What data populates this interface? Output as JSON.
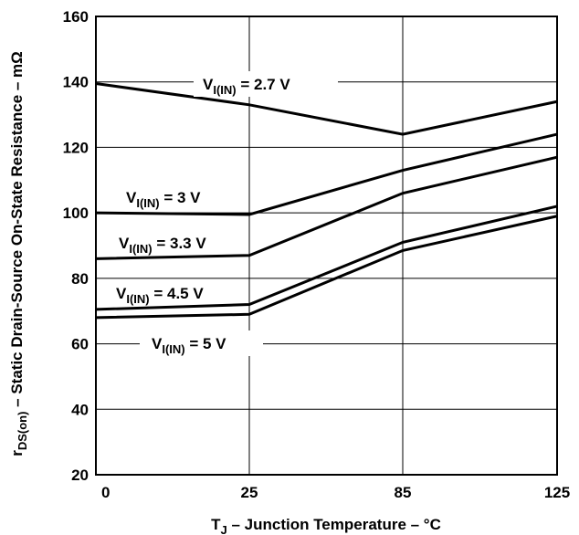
{
  "chart_data": {
    "type": "line",
    "xlabel": {
      "main": "T",
      "sub": "J",
      "rest": " – Junction Temperature – °C"
    },
    "ylabel": {
      "main": "r",
      "sub": "DS(on)",
      "rest": " – Static Drain-Source On-State Resistance – mΩ"
    },
    "x_ticks": [
      0,
      25,
      85,
      125
    ],
    "y_ticks": [
      20,
      40,
      60,
      80,
      100,
      120,
      140,
      160
    ],
    "ylim": [
      20,
      160
    ],
    "grid": true,
    "series": [
      {
        "name": "V_I(IN) = 2.7 V",
        "label": {
          "main": "V",
          "sub": "I(IN)",
          "rest": " = 2.7 V"
        },
        "x": [
          0,
          25,
          85,
          125
        ],
        "y": [
          139.5,
          133,
          124,
          134
        ]
      },
      {
        "name": "V_I(IN) = 3 V",
        "label": {
          "main": "V",
          "sub": "I(IN)",
          "rest": " = 3 V"
        },
        "x": [
          0,
          25,
          85,
          125
        ],
        "y": [
          100,
          99.5,
          113,
          124
        ]
      },
      {
        "name": "V_I(IN) = 3.3 V",
        "label": {
          "main": "V",
          "sub": "I(IN)",
          "rest": " = 3.3 V"
        },
        "x": [
          0,
          25,
          85,
          125
        ],
        "y": [
          86,
          87,
          106,
          117
        ]
      },
      {
        "name": "V_I(IN) = 4.5 V",
        "label": {
          "main": "V",
          "sub": "I(IN)",
          "rest": " = 4.5 V"
        },
        "x": [
          0,
          25,
          85,
          125
        ],
        "y": [
          70.5,
          72,
          91,
          102
        ]
      },
      {
        "name": "V_I(IN) = 5 V",
        "label": {
          "main": "V",
          "sub": "I(IN)",
          "rest": " = 5 V"
        },
        "x": [
          0,
          25,
          85,
          125
        ],
        "y": [
          68,
          69,
          88.5,
          99
        ]
      }
    ]
  }
}
